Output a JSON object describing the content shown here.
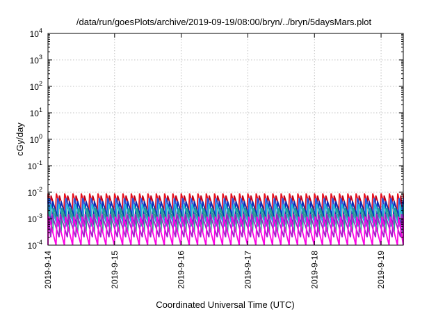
{
  "chart_data": {
    "type": "line",
    "title": "/data/run/goesPlots/archive/2019-09-19/08:00/bryn/../bryn/5daysMars.plot",
    "xlabel": "Coordinated Universal Time (UTC)",
    "ylabel": "cGy/day",
    "y_scale": "log",
    "ylim": [
      0.0001,
      10000
    ],
    "xlim": [
      "2019-09-14T00:00",
      "2019-09-19T08:00"
    ],
    "grid": true,
    "legend": "none",
    "x_ticks": [
      {
        "value": "2019-09-14T00:00",
        "label": "2019-9-14"
      },
      {
        "value": "2019-09-15T00:00",
        "label": "2019-9-15"
      },
      {
        "value": "2019-09-16T00:00",
        "label": "2019-9-16"
      },
      {
        "value": "2019-09-17T00:00",
        "label": "2019-9-17"
      },
      {
        "value": "2019-09-18T00:00",
        "label": "2019-9-18"
      },
      {
        "value": "2019-09-19T00:00",
        "label": "2019-9-19"
      }
    ],
    "y_ticks": [
      {
        "value": 0.0001,
        "base": "10",
        "exp": "-4"
      },
      {
        "value": 0.001,
        "base": "10",
        "exp": "-3"
      },
      {
        "value": 0.01,
        "base": "10",
        "exp": "-2"
      },
      {
        "value": 0.1,
        "base": "10",
        "exp": "-1"
      },
      {
        "value": 1,
        "base": "10",
        "exp": "0"
      },
      {
        "value": 10,
        "base": "10",
        "exp": "1"
      },
      {
        "value": 100,
        "base": "10",
        "exp": "2"
      },
      {
        "value": 1000,
        "base": "10",
        "exp": "3"
      },
      {
        "value": 10000,
        "base": "10",
        "exp": "4"
      }
    ],
    "series_style": "sawtooth with period of about 3 hours",
    "series": [
      {
        "color": "#e8101e",
        "peak": 0.009,
        "trough": 0.001,
        "phase_hours": 0.0
      },
      {
        "color": "#c00018",
        "peak": 0.0075,
        "trough": 0.0009,
        "phase_hours": 1.1
      },
      {
        "color": "#1e5ae6",
        "peak": 0.006,
        "trough": 0.0007,
        "phase_hours": 0.5
      },
      {
        "color": "#0a2db4",
        "peak": 0.0045,
        "trough": 0.0006,
        "phase_hours": 1.7
      },
      {
        "color": "#1ebed2",
        "peak": 0.0035,
        "trough": 0.0005,
        "phase_hours": 0.9
      },
      {
        "color": "#28a08c",
        "peak": 0.0025,
        "trough": 0.0003,
        "phase_hours": 2.1
      },
      {
        "color": "#a020c8",
        "peak": 0.0015,
        "trough": 0.0002,
        "phase_hours": 1.4
      },
      {
        "color": "#ff00e6",
        "peak": 0.0012,
        "trough": 0.0001,
        "phase_hours": 0.3
      }
    ]
  }
}
